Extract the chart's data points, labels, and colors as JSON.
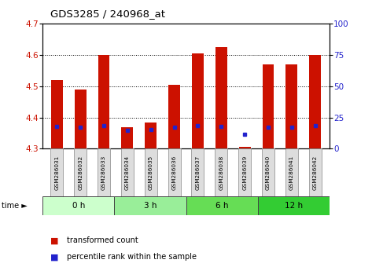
{
  "title": "GDS3285 / 240968_at",
  "samples": [
    "GSM286031",
    "GSM286032",
    "GSM286033",
    "GSM286034",
    "GSM286035",
    "GSM286036",
    "GSM286037",
    "GSM286038",
    "GSM286039",
    "GSM286040",
    "GSM286041",
    "GSM286042"
  ],
  "bar_bottoms": [
    4.3,
    4.3,
    4.3,
    4.3,
    4.3,
    4.3,
    4.3,
    4.3,
    4.3,
    4.3,
    4.3,
    4.3
  ],
  "bar_tops": [
    4.52,
    4.49,
    4.6,
    4.37,
    4.385,
    4.505,
    4.605,
    4.625,
    4.305,
    4.57,
    4.57,
    4.6
  ],
  "blue_y": [
    4.371,
    4.368,
    4.374,
    4.358,
    4.362,
    4.369,
    4.373,
    4.372,
    4.347,
    4.369,
    4.368,
    4.373
  ],
  "ylim_left": [
    4.3,
    4.7
  ],
  "ylim_right": [
    0,
    100
  ],
  "yticks_left": [
    4.3,
    4.4,
    4.5,
    4.6,
    4.7
  ],
  "yticks_right": [
    0,
    25,
    50,
    75,
    100
  ],
  "bar_color": "#cc1100",
  "blue_color": "#2222cc",
  "groups": [
    {
      "label": "0 h",
      "start": 0,
      "end": 3
    },
    {
      "label": "3 h",
      "start": 3,
      "end": 6
    },
    {
      "label": "6 h",
      "start": 6,
      "end": 9
    },
    {
      "label": "12 h",
      "start": 9,
      "end": 12
    }
  ],
  "group_colors": [
    "#ccffcc",
    "#99ee99",
    "#66dd55",
    "#33cc33"
  ],
  "legend_red": "transformed count",
  "legend_blue": "percentile rank within the sample",
  "bar_width": 0.5,
  "label_box_color": "#dddddd",
  "tick_fontsize": 7.5,
  "title_fontsize": 9.5
}
